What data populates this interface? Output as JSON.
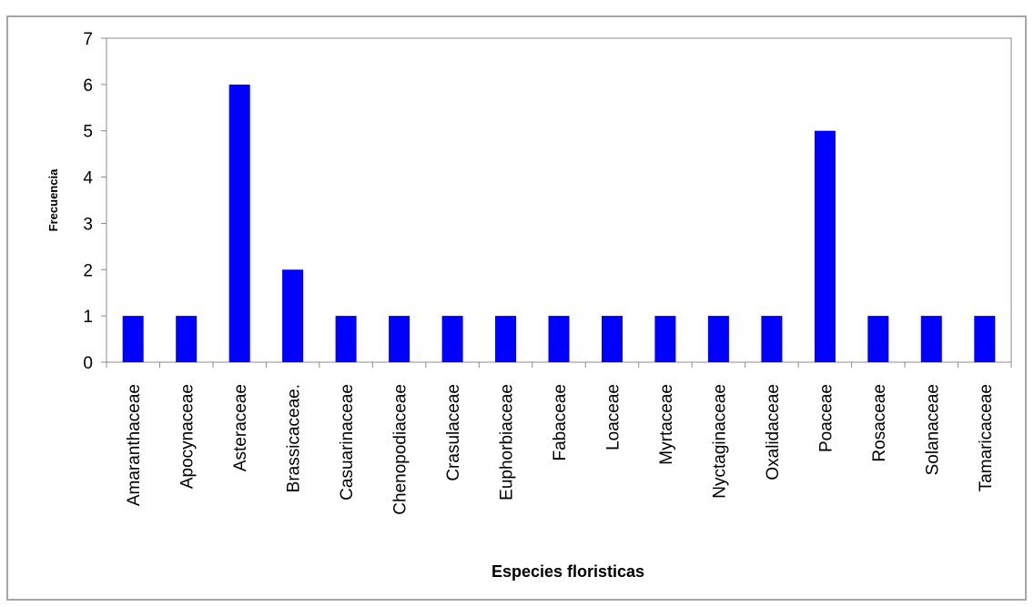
{
  "chart_data": {
    "type": "bar",
    "title": "",
    "xlabel": "Especies floristicas",
    "ylabel": "Frecuencia",
    "categories": [
      "Amaranthaceae",
      "Apocynaceae",
      "Asteraceae",
      "Brassicaceae.",
      "Casuarinaceae",
      "Chenopodiaceae",
      "Crasulaceae",
      "Euphorbiaceae",
      "Fabaceae",
      "Loaceae",
      "Myrtaceae",
      "Nyctaginaceae",
      "Oxalidaceae",
      "Poaceae",
      "Rosaceae",
      "Solanaceae",
      "Tamaricaceae"
    ],
    "values": [
      1,
      1,
      6,
      2,
      1,
      1,
      1,
      1,
      1,
      1,
      1,
      1,
      1,
      5,
      1,
      1,
      1
    ],
    "ylim": [
      0,
      7
    ],
    "yticks": [
      0,
      1,
      2,
      3,
      4,
      5,
      6,
      7
    ],
    "bar_color": "#0000ff",
    "grid": false,
    "legend": "none"
  }
}
